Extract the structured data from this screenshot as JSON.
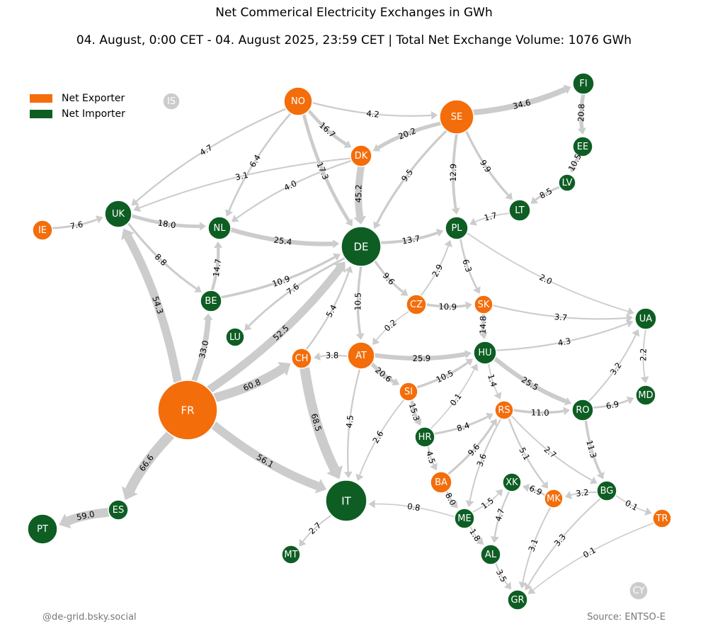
{
  "title": "Net Commerical Electricity Exchanges in GWh",
  "subtitle": "04. August, 0:00 CET - 04. August 2025, 23:59 CET | Total Net Exchange Volume: 1076 GWh",
  "legend": [
    {
      "label": "Net Exporter",
      "color": "#f46d0b"
    },
    {
      "label": "Net Importer",
      "color": "#0e5e24"
    }
  ],
  "credit": "@de-grid.bsky.social",
  "source": "Source: ENTSO-E",
  "colors": {
    "exporter": "#f46d0b",
    "importer": "#0e5e24",
    "inactive": "#cccccc",
    "flow": "#cccccc"
  },
  "countries": [
    {
      "id": "IS",
      "status": "inactive"
    },
    {
      "id": "NO",
      "status": "exporter"
    },
    {
      "id": "SE",
      "status": "exporter"
    },
    {
      "id": "FI",
      "status": "importer"
    },
    {
      "id": "EE",
      "status": "importer"
    },
    {
      "id": "LV",
      "status": "importer"
    },
    {
      "id": "LT",
      "status": "importer"
    },
    {
      "id": "DK",
      "status": "exporter"
    },
    {
      "id": "UK",
      "status": "importer"
    },
    {
      "id": "IE",
      "status": "exporter"
    },
    {
      "id": "NL",
      "status": "importer"
    },
    {
      "id": "DE",
      "status": "importer"
    },
    {
      "id": "PL",
      "status": "importer"
    },
    {
      "id": "BE",
      "status": "importer"
    },
    {
      "id": "LU",
      "status": "importer"
    },
    {
      "id": "CZ",
      "status": "exporter"
    },
    {
      "id": "SK",
      "status": "exporter"
    },
    {
      "id": "UA",
      "status": "importer"
    },
    {
      "id": "FR",
      "status": "exporter"
    },
    {
      "id": "CH",
      "status": "exporter"
    },
    {
      "id": "AT",
      "status": "exporter"
    },
    {
      "id": "HU",
      "status": "importer"
    },
    {
      "id": "MD",
      "status": "importer"
    },
    {
      "id": "SI",
      "status": "exporter"
    },
    {
      "id": "RS",
      "status": "exporter"
    },
    {
      "id": "RO",
      "status": "importer"
    },
    {
      "id": "HR",
      "status": "importer"
    },
    {
      "id": "ES",
      "status": "importer"
    },
    {
      "id": "PT",
      "status": "importer"
    },
    {
      "id": "IT",
      "status": "importer"
    },
    {
      "id": "BA",
      "status": "exporter"
    },
    {
      "id": "XK",
      "status": "importer"
    },
    {
      "id": "MK",
      "status": "exporter"
    },
    {
      "id": "BG",
      "status": "importer"
    },
    {
      "id": "TR",
      "status": "exporter"
    },
    {
      "id": "ME",
      "status": "importer"
    },
    {
      "id": "AL",
      "status": "importer"
    },
    {
      "id": "MT",
      "status": "importer"
    },
    {
      "id": "GR",
      "status": "importer"
    },
    {
      "id": "CY",
      "status": "inactive"
    }
  ],
  "flows": [
    {
      "from": "NO",
      "to": "SE",
      "value": "4.2"
    },
    {
      "from": "NO",
      "to": "DK",
      "value": "16.7"
    },
    {
      "from": "NO",
      "to": "UK",
      "value": "4.7"
    },
    {
      "from": "NO",
      "to": "NL",
      "value": "6.4"
    },
    {
      "from": "NO",
      "to": "DE",
      "value": "17.3"
    },
    {
      "from": "SE",
      "to": "FI",
      "value": "34.6"
    },
    {
      "from": "SE",
      "to": "DK",
      "value": "20.2"
    },
    {
      "from": "SE",
      "to": "DE",
      "value": "9.5"
    },
    {
      "from": "SE",
      "to": "PL",
      "value": "12.9"
    },
    {
      "from": "SE",
      "to": "LT",
      "value": "9.9"
    },
    {
      "from": "FI",
      "to": "EE",
      "value": "20.8"
    },
    {
      "from": "EE",
      "to": "LV",
      "value": "10.5"
    },
    {
      "from": "LV",
      "to": "LT",
      "value": "8.5"
    },
    {
      "from": "LT",
      "to": "PL",
      "value": "1.7"
    },
    {
      "from": "DK",
      "to": "UK",
      "value": "3.1"
    },
    {
      "from": "DK",
      "to": "NL",
      "value": "4.0"
    },
    {
      "from": "DK",
      "to": "DE",
      "value": "45.2"
    },
    {
      "from": "IE",
      "to": "UK",
      "value": "7.6"
    },
    {
      "from": "UK",
      "to": "NL",
      "value": "18.0"
    },
    {
      "from": "UK",
      "to": "BE",
      "value": "8.8"
    },
    {
      "from": "NL",
      "to": "DE",
      "value": "25.4"
    },
    {
      "from": "BE",
      "to": "NL",
      "value": "14.7"
    },
    {
      "from": "BE",
      "to": "DE",
      "value": "10.9"
    },
    {
      "from": "DE",
      "to": "LU",
      "value": "7.6"
    },
    {
      "from": "DE",
      "to": "PL",
      "value": "13.7"
    },
    {
      "from": "DE",
      "to": "CZ",
      "value": "9.6"
    },
    {
      "from": "DE",
      "to": "AT",
      "value": "10.5"
    },
    {
      "from": "CH",
      "to": "DE",
      "value": "5.4"
    },
    {
      "from": "FR",
      "to": "UK",
      "value": "54.3"
    },
    {
      "from": "FR",
      "to": "BE",
      "value": "33.0"
    },
    {
      "from": "FR",
      "to": "DE",
      "value": "52.5"
    },
    {
      "from": "FR",
      "to": "CH",
      "value": "60.8"
    },
    {
      "from": "FR",
      "to": "IT",
      "value": "56.1"
    },
    {
      "from": "FR",
      "to": "ES",
      "value": "66.6"
    },
    {
      "from": "ES",
      "to": "PT",
      "value": "59.0"
    },
    {
      "from": "CH",
      "to": "IT",
      "value": "68.5"
    },
    {
      "from": "AT",
      "to": "CH",
      "value": "3.8"
    },
    {
      "from": "AT",
      "to": "IT",
      "value": "4.5"
    },
    {
      "from": "AT",
      "to": "HU",
      "value": "25.9"
    },
    {
      "from": "AT",
      "to": "SI",
      "value": "20.6"
    },
    {
      "from": "CZ",
      "to": "AT",
      "value": "0.2"
    },
    {
      "from": "CZ",
      "to": "PL",
      "value": "2.9"
    },
    {
      "from": "CZ",
      "to": "SK",
      "value": "10.9"
    },
    {
      "from": "PL",
      "to": "SK",
      "value": "6.3"
    },
    {
      "from": "PL",
      "to": "UA",
      "value": "2.0"
    },
    {
      "from": "SK",
      "to": "UA",
      "value": "3.7"
    },
    {
      "from": "SK",
      "to": "HU",
      "value": "14.8"
    },
    {
      "from": "HU",
      "to": "UA",
      "value": "4.3"
    },
    {
      "from": "HU",
      "to": "RS",
      "value": "1.4"
    },
    {
      "from": "HU",
      "to": "RO",
      "value": "25.5"
    },
    {
      "from": "RO",
      "to": "UA",
      "value": "3.2"
    },
    {
      "from": "UA",
      "to": "MD",
      "value": "2.2"
    },
    {
      "from": "RO",
      "to": "MD",
      "value": "6.9"
    },
    {
      "from": "RO",
      "to": "BG",
      "value": "11.3"
    },
    {
      "from": "SI",
      "to": "HU",
      "value": "10.5"
    },
    {
      "from": "SI",
      "to": "HR",
      "value": "15.3"
    },
    {
      "from": "SI",
      "to": "IT",
      "value": "2.6"
    },
    {
      "from": "HR",
      "to": "HU",
      "value": "0.1"
    },
    {
      "from": "HR",
      "to": "RS",
      "value": "8.4"
    },
    {
      "from": "HR",
      "to": "BA",
      "value": "4.5"
    },
    {
      "from": "RS",
      "to": "RO",
      "value": "11.0"
    },
    {
      "from": "BA",
      "to": "RS",
      "value": "9.6"
    },
    {
      "from": "RS",
      "to": "ME",
      "value": "3.6"
    },
    {
      "from": "RS",
      "to": "MK",
      "value": "5.1"
    },
    {
      "from": "RS",
      "to": "BG",
      "value": "2.7"
    },
    {
      "from": "BA",
      "to": "ME",
      "value": "8.0"
    },
    {
      "from": "ME",
      "to": "XK",
      "value": "1.5"
    },
    {
      "from": "ME",
      "to": "IT",
      "value": "0.8"
    },
    {
      "from": "ME",
      "to": "AL",
      "value": "1.8"
    },
    {
      "from": "XK",
      "to": "AL",
      "value": "4.7"
    },
    {
      "from": "MK",
      "to": "XK",
      "value": "6.9"
    },
    {
      "from": "BG",
      "to": "MK",
      "value": "3.2"
    },
    {
      "from": "BG",
      "to": "TR",
      "value": "0.1"
    },
    {
      "from": "MK",
      "to": "GR",
      "value": "3.1"
    },
    {
      "from": "BG",
      "to": "GR",
      "value": "3.3"
    },
    {
      "from": "TR",
      "to": "GR",
      "value": "0.1"
    },
    {
      "from": "AL",
      "to": "GR",
      "value": "3.5"
    },
    {
      "from": "IT",
      "to": "MT",
      "value": "2.7"
    }
  ]
}
